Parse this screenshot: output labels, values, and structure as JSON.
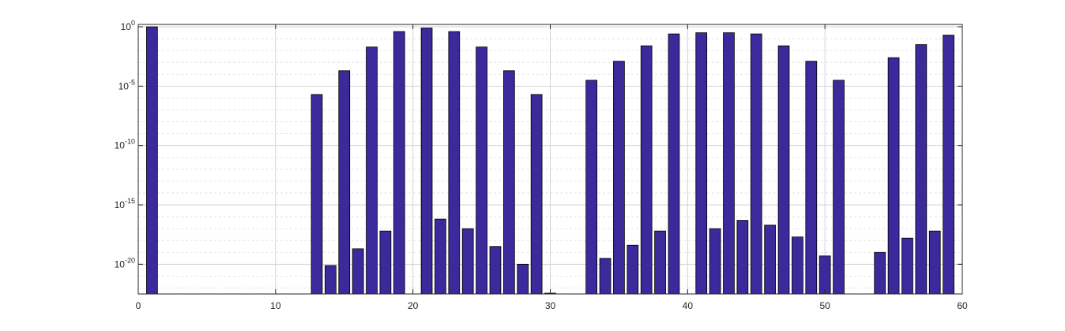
{
  "chart_data": {
    "type": "bar",
    "title": "",
    "xlabel": "",
    "ylabel": "",
    "x_scale": "linear",
    "y_scale": "log",
    "xlim": [
      0,
      60
    ],
    "x_ticks": [
      0,
      10,
      20,
      30,
      40,
      50,
      60
    ],
    "x_tick_labels": [
      "0",
      "10",
      "20",
      "30",
      "40",
      "50",
      "60"
    ],
    "ylim_exponent": [
      -22.5,
      0.2
    ],
    "y_ticks": [
      0,
      -5,
      -10,
      -15,
      -20
    ],
    "y_tick_labels": [
      {
        "base": "10",
        "exp": "0"
      },
      {
        "base": "10",
        "exp": "-5"
      },
      {
        "base": "10",
        "exp": "-10"
      },
      {
        "base": "10",
        "exp": "-15"
      },
      {
        "base": "10",
        "exp": "-20"
      }
    ],
    "grid": true,
    "minor_grid": true,
    "bar_color": "#3a2a9c",
    "bar_edge_color": "#000000",
    "series": [
      {
        "x": [
          1,
          13,
          14,
          15,
          16,
          17,
          18,
          19,
          21,
          22,
          23,
          24,
          25,
          26,
          27,
          28,
          29,
          30,
          33,
          34,
          35,
          36,
          37,
          38,
          39,
          41,
          42,
          43,
          44,
          45,
          46,
          47,
          48,
          49,
          50,
          51,
          54,
          55,
          56,
          57,
          58,
          59
        ],
        "log10_values": [
          0,
          -5.7,
          -20.1,
          -3.7,
          -18.7,
          -1.7,
          -17.2,
          -0.4,
          -0.1,
          -16.2,
          -0.4,
          -17.0,
          -1.7,
          -18.5,
          -3.7,
          -20.0,
          -5.7,
          -22.5,
          -4.5,
          -19.5,
          -2.9,
          -18.4,
          -1.6,
          -17.2,
          -0.6,
          -0.5,
          -17.0,
          -0.5,
          -16.3,
          -0.6,
          -16.7,
          -1.6,
          -17.7,
          -2.9,
          -19.3,
          -4.5,
          -19.0,
          -2.6,
          -17.8,
          -1.5,
          -17.2,
          -0.7
        ]
      }
    ]
  }
}
